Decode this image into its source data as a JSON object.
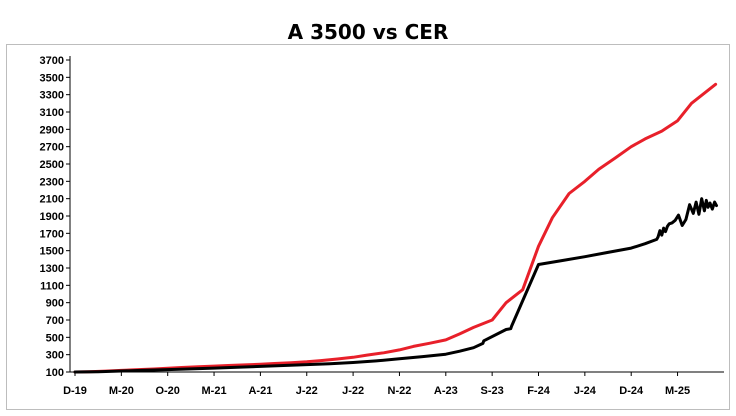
{
  "chart_data": {
    "type": "line",
    "title": "A 3500 vs CER",
    "xlabel": "",
    "ylabel": "",
    "ylim": [
      100,
      3700
    ],
    "y_ticks": [
      100,
      300,
      500,
      700,
      900,
      1100,
      1300,
      1500,
      1700,
      1900,
      2100,
      2300,
      2500,
      2700,
      2900,
      3100,
      3300,
      3500,
      3700
    ],
    "x_ticks": [
      "D-19",
      "M-20",
      "O-20",
      "M-21",
      "A-21",
      "J-22",
      "J-22",
      "N-22",
      "A-23",
      "S-23",
      "F-24",
      "J-24",
      "D-24",
      "M-25"
    ],
    "grid": false,
    "legend": "none",
    "series": [
      {
        "color": "#e8202a",
        "x": [
          0,
          0.3,
          0.66,
          1,
          1.3,
          1.7,
          2,
          2.3,
          2.66,
          3,
          3.3,
          3.66,
          4,
          4.3,
          4.66,
          5,
          5.3,
          5.66,
          6,
          6.3,
          6.66,
          7,
          7.3,
          7.66,
          8,
          8.3,
          8.6,
          9,
          9.3,
          9.66,
          10,
          10.3,
          10.66,
          11,
          11.3,
          11.66,
          12,
          12.3,
          12.66,
          13,
          13.3,
          13.82
        ],
        "values": [
          100,
          103,
          110,
          118,
          126,
          135,
          143,
          152,
          160,
          168,
          175,
          182,
          190,
          198,
          207,
          218,
          232,
          250,
          270,
          295,
          322,
          355,
          395,
          432,
          470,
          540,
          615,
          700,
          900,
          1050,
          1550,
          1880,
          2160,
          2300,
          2440,
          2570,
          2700,
          2790,
          2880,
          3000,
          3200,
          3420
        ]
      },
      {
        "color": "#000000",
        "x": [
          0,
          0.5,
          1,
          1.5,
          2,
          2.5,
          3,
          3.5,
          4,
          4.5,
          5,
          5.5,
          6,
          6.5,
          7,
          7.5,
          8,
          8.3,
          8.6,
          8.8,
          8.82,
          9.3,
          9.4,
          9.42,
          10,
          10.5,
          11,
          11.5,
          12,
          12.3,
          12.55,
          12.58,
          12.62,
          12.66,
          12.7,
          12.74,
          12.78,
          12.82,
          12.88,
          12.95,
          13.02,
          13.1,
          13.18,
          13.26,
          13.34,
          13.4,
          13.46,
          13.52,
          13.58,
          13.62,
          13.66,
          13.7,
          13.75,
          13.8,
          13.84
        ],
        "values": [
          100,
          104,
          112,
          120,
          128,
          136,
          145,
          155,
          165,
          175,
          185,
          196,
          210,
          228,
          252,
          278,
          305,
          340,
          380,
          430,
          460,
          590,
          600,
          630,
          1340,
          1385,
          1430,
          1480,
          1530,
          1580,
          1630,
          1660,
          1730,
          1680,
          1760,
          1720,
          1780,
          1810,
          1820,
          1850,
          1910,
          1790,
          1860,
          2030,
          1930,
          2060,
          1920,
          2100,
          1960,
          2080,
          2000,
          2050,
          1980,
          2060,
          2020
        ]
      }
    ]
  }
}
